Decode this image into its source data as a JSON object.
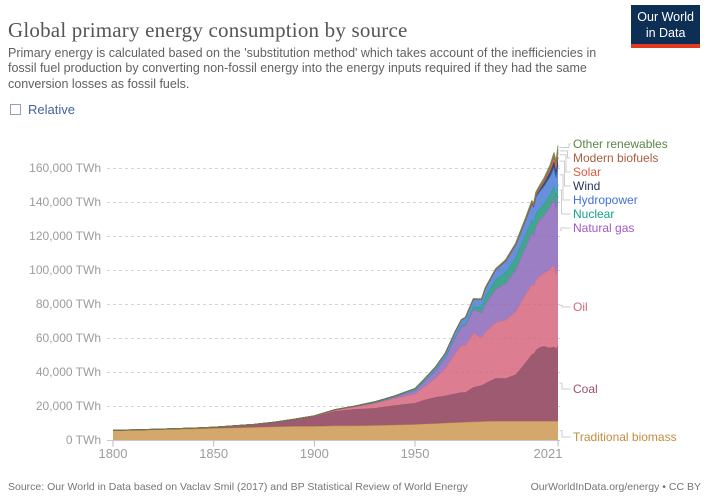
{
  "header": {
    "title": "Global primary energy consumption by source",
    "subtitle": "Primary energy is calculated based on the 'substitution method' which takes account of the inefficiencies in fossil fuel production by converting non-fossil energy into the energy inputs required if they had the same conversion losses as fossil fuels.",
    "logo": {
      "line1": "Our World",
      "line2": "in Data",
      "bg_color": "#0d2e55",
      "accent_color": "#e03a21"
    }
  },
  "controls": {
    "relative_label": "Relative",
    "relative_checked": false
  },
  "chart_data": {
    "type": "area",
    "stacked": true,
    "title": "Global primary energy consumption by source",
    "unit": "TWh",
    "xlabel": "",
    "ylabel": "",
    "xlim": [
      1800,
      2021
    ],
    "ylim": [
      0,
      176000
    ],
    "grid": true,
    "legend_position": "right",
    "grid_color": "#e3e3e3",
    "axis_text_color": "#9c9c9c",
    "xticks": {
      "labels": [
        "1800",
        "1850",
        "1900",
        "1950",
        "2021"
      ],
      "values": [
        1800,
        1850,
        1900,
        1950,
        2021
      ]
    },
    "yticks": {
      "labels": [
        "0 TWh",
        "20,000 TWh",
        "40,000 TWh",
        "60,000 TWh",
        "80,000 TWh",
        "100,000 TWh",
        "120,000 TWh",
        "140,000 TWh",
        "160,000 TWh"
      ],
      "values": [
        0,
        20000,
        40000,
        60000,
        80000,
        100000,
        120000,
        140000,
        160000
      ]
    },
    "x": [
      1800,
      1810,
      1820,
      1830,
      1840,
      1850,
      1860,
      1870,
      1880,
      1890,
      1900,
      1910,
      1920,
      1930,
      1940,
      1950,
      1955,
      1960,
      1965,
      1970,
      1973,
      1975,
      1979,
      1983,
      1985,
      1990,
      1995,
      2000,
      2005,
      2008,
      2009,
      2010,
      2012,
      2014,
      2015,
      2017,
      2019,
      2020,
      2021
    ],
    "series": [
      {
        "name": "Traditional biomass",
        "fill": "#d4a76c",
        "line": "#bf8e3f",
        "values": [
          5556,
          5833,
          6111,
          6389,
          6667,
          6944,
          7222,
          7500,
          7778,
          8056,
          8056,
          8333,
          8333,
          8611,
          8889,
          9167,
          9444,
          9722,
          10000,
          10278,
          10400,
          10556,
          10700,
          10900,
          11000,
          11111,
          11111,
          11111,
          11111,
          11111,
          11111,
          11111,
          11111,
          11111,
          11111,
          11111,
          11111,
          11111,
          11111
        ]
      },
      {
        "name": "Coal",
        "fill": "#9e5a70",
        "line": "#a04e6e",
        "values": [
          97,
          128,
          153,
          264,
          356,
          569,
          1061,
          1642,
          2542,
          3856,
          5728,
          8656,
          9833,
          10125,
          11586,
          12603,
          14319,
          15442,
          16140,
          17067,
          17700,
          17560,
          20400,
          21300,
          22500,
          25317,
          25177,
          27427,
          34605,
          39283,
          39603,
          41907,
          43500,
          44100,
          43786,
          43100,
          43858,
          42623,
          44473
        ]
      },
      {
        "name": "Oil",
        "fill": "#dd7d92",
        "line": "#d4677f",
        "values": [
          0,
          0,
          0,
          0,
          0,
          0,
          2,
          17,
          92,
          181,
          300,
          611,
          1389,
          2756,
          4086,
          5444,
          7947,
          11096,
          16010,
          23628,
          27700,
          27624,
          31800,
          28200,
          30294,
          32743,
          34387,
          37221,
          40220,
          41000,
          40000,
          41073,
          41900,
          43000,
          44131,
          46000,
          48463,
          43806,
          47435
        ]
      },
      {
        "name": "Natural gas",
        "fill": "#9c7ec4",
        "line": "#a258c6",
        "values": [
          0,
          0,
          0,
          0,
          0,
          0,
          0,
          0,
          0,
          64,
          64,
          142,
          228,
          603,
          875,
          2092,
          3163,
          4472,
          6304,
          9614,
          10900,
          11470,
          13900,
          14600,
          16467,
          19484,
          21394,
          24415,
          27785,
          30620,
          29659,
          31954,
          33100,
          33900,
          34741,
          36900,
          39067,
          38807,
          40375
        ]
      },
      {
        "name": "Nuclear",
        "fill": "#44a58d",
        "line": "#12a28a",
        "values": [
          0,
          0,
          0,
          0,
          0,
          0,
          0,
          0,
          0,
          0,
          0,
          0,
          0,
          0,
          0,
          0,
          0,
          72,
          72,
          224,
          580,
          1049,
          1850,
          3000,
          4225,
          5676,
          6590,
          7323,
          7608,
          7520,
          7450,
          7374,
          6700,
          6800,
          6941,
          7000,
          7073,
          6789,
          7031
        ]
      },
      {
        "name": "Hydropower",
        "fill": "#6590dc",
        "line": "#4271d8",
        "values": [
          0,
          0,
          0,
          0,
          0,
          0,
          0,
          0,
          0,
          3,
          47,
          97,
          139,
          361,
          511,
          926,
          1338,
          1917,
          2417,
          3095,
          3400,
          3779,
          4300,
          4750,
          5093,
          5720,
          6590,
          7295,
          8230,
          9000,
          9100,
          9518,
          10000,
          10400,
          10473,
          10570,
          10679,
          11094,
          11183
        ]
      },
      {
        "name": "Wind",
        "fill": "#38517a",
        "line": "#24395d",
        "values": [
          0,
          0,
          0,
          0,
          0,
          0,
          0,
          0,
          0,
          0,
          0,
          0,
          0,
          0,
          0,
          0,
          0,
          0,
          0,
          0,
          0,
          0,
          0,
          0,
          0,
          10,
          23,
          93,
          291,
          620,
          780,
          959,
          1430,
          1890,
          2306,
          3030,
          3884,
          4327,
          4872
        ]
      },
      {
        "name": "Solar",
        "fill": "#e8816c",
        "line": "#e2583f",
        "values": [
          0,
          0,
          0,
          0,
          0,
          0,
          0,
          0,
          0,
          0,
          0,
          0,
          0,
          0,
          0,
          0,
          0,
          0,
          0,
          0,
          0,
          0,
          0,
          0,
          1,
          1,
          2,
          3,
          11,
          40,
          60,
          93,
          270,
          500,
          685,
          1200,
          1857,
          2212,
          2702
        ]
      },
      {
        "name": "Modern biofuels",
        "fill": "#aa6a4d",
        "line": "#a85d3f",
        "values": [
          0,
          0,
          0,
          0,
          0,
          0,
          0,
          0,
          0,
          0,
          0,
          0,
          0,
          0,
          0,
          0,
          0,
          0,
          30,
          40,
          50,
          60,
          90,
          130,
          170,
          350,
          420,
          480,
          700,
          950,
          1020,
          1150,
          1250,
          1350,
          1400,
          1500,
          1700,
          1700,
          1754
        ]
      },
      {
        "name": "Other renewables",
        "fill": "#7ba257",
        "line": "#5a8545",
        "values": [
          0,
          0,
          0,
          0,
          0,
          0,
          0,
          0,
          0,
          0,
          0,
          0,
          0,
          0,
          0,
          0,
          0,
          0,
          20,
          30,
          40,
          50,
          80,
          120,
          160,
          300,
          360,
          430,
          520,
          620,
          680,
          720,
          800,
          880,
          920,
          1050,
          1300,
          1400,
          2222
        ]
      }
    ]
  },
  "footer": {
    "source": "Source: Our World in Data based on Vaclav Smil (2017) and BP Statistical Review of World Energy",
    "credit": "OurWorldInData.org/energy • CC BY"
  }
}
